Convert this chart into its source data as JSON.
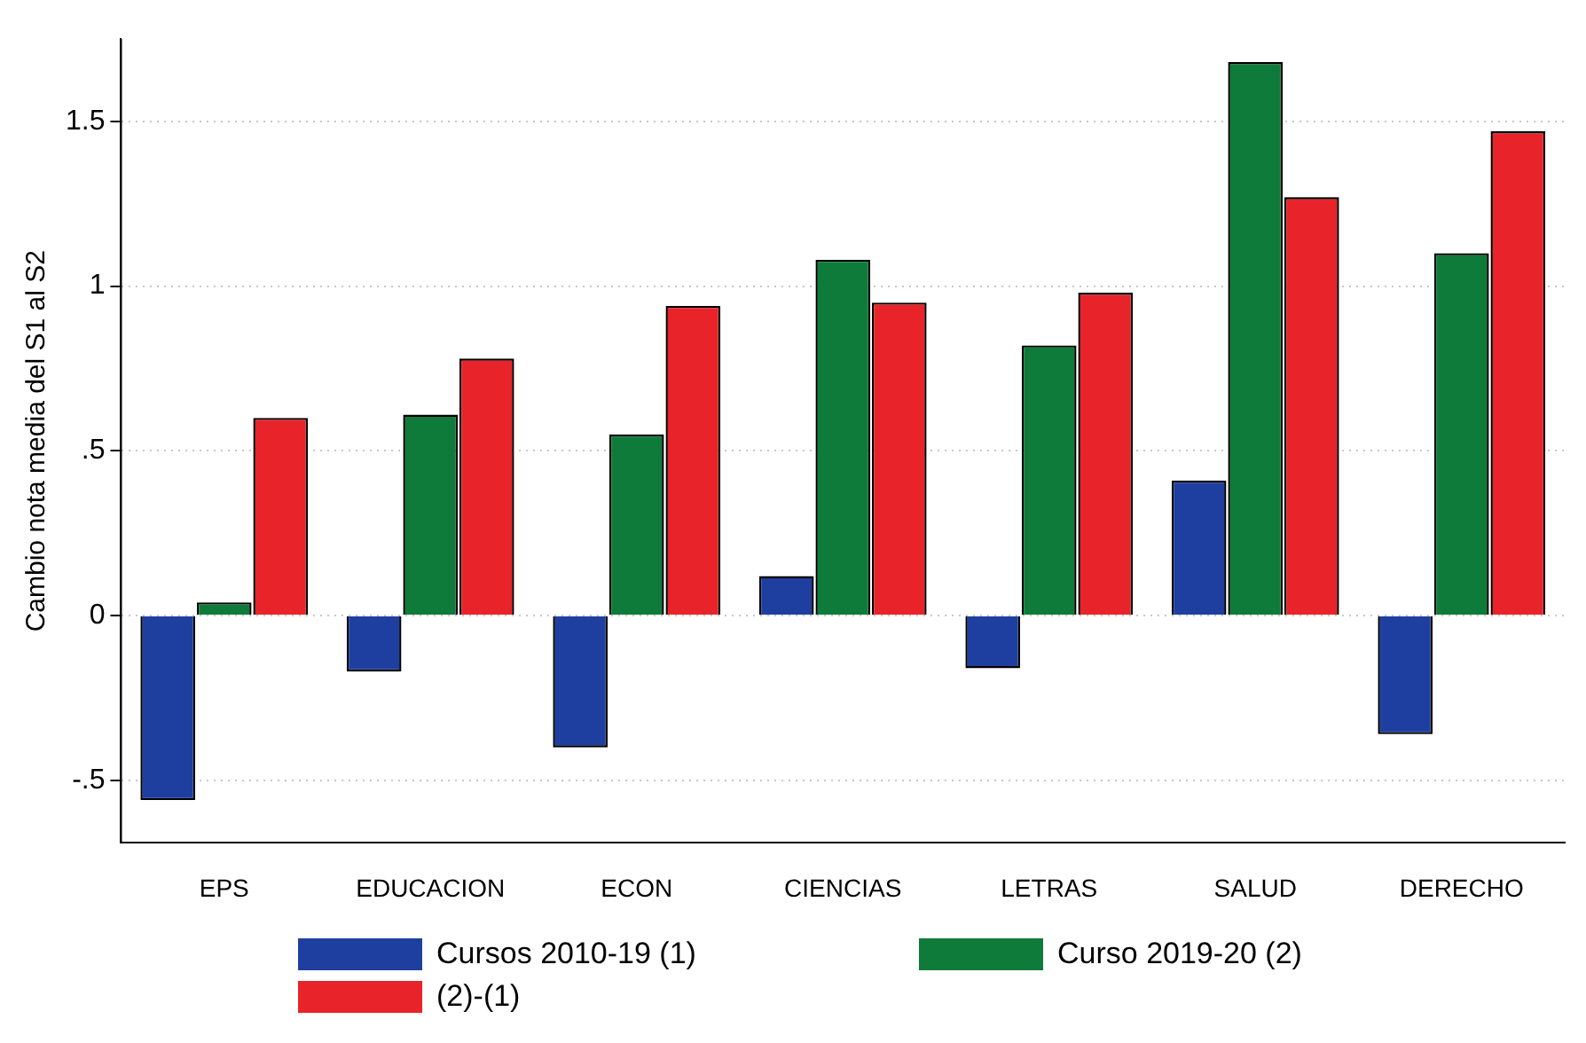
{
  "chart_data": {
    "type": "bar",
    "ylabel": "Cambio nota media del S1 al S2",
    "categories": [
      "EPS",
      "EDUCACION",
      "ECON",
      "CIENCIAS",
      "LETRAS",
      "SALUD",
      "DERECHO"
    ],
    "series": [
      {
        "name": "Cursos 2010-19 (1)",
        "color": "#1f3fa0",
        "values": [
          -0.56,
          -0.17,
          -0.4,
          0.12,
          -0.16,
          0.41,
          -0.36
        ]
      },
      {
        "name": "Curso 2019-20 (2)",
        "color": "#0f7b3a",
        "values": [
          0.04,
          0.61,
          0.55,
          1.08,
          0.82,
          1.68,
          1.1
        ]
      },
      {
        "name": "(2)-(1)",
        "color": "#e8242a",
        "values": [
          0.6,
          0.78,
          0.94,
          0.95,
          0.98,
          1.27,
          1.47
        ]
      }
    ],
    "ylim": [
      -0.69,
      1.75
    ],
    "yticks": [
      {
        "value": -0.5,
        "label": "-.5"
      },
      0,
      {
        "value": 0.5,
        "label": ".5"
      },
      1,
      1.5
    ],
    "grid": "y",
    "legend": "bottom"
  }
}
